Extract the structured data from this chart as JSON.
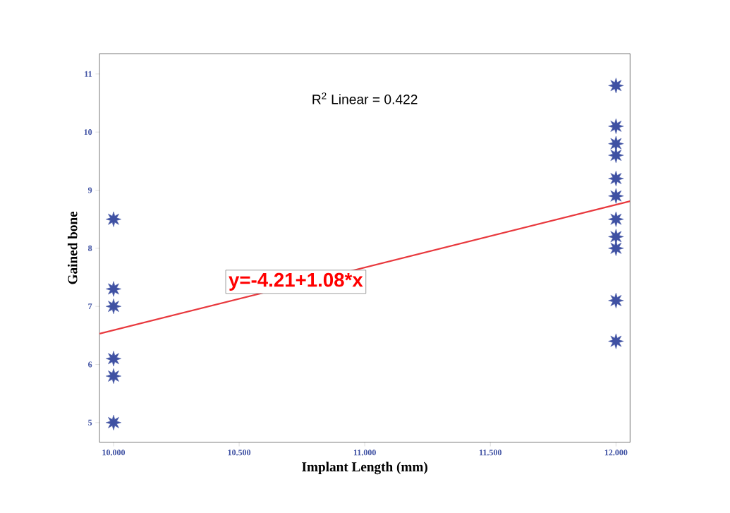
{
  "chart_data": {
    "type": "scatter",
    "xlabel": "Implant Length (mm)",
    "ylabel": "Gained bone",
    "series": [
      {
        "color": "#3f51a3",
        "marker": "star",
        "x": [
          10,
          10,
          10,
          10,
          10,
          10,
          12,
          12,
          12,
          12,
          12,
          12,
          12,
          12,
          12,
          12,
          12
        ],
        "values": [
          8.5,
          7.3,
          7.0,
          6.1,
          5.8,
          5.0,
          10.8,
          10.1,
          9.8,
          9.6,
          9.2,
          8.9,
          8.5,
          8.2,
          8.0,
          7.1,
          6.4
        ]
      },
      {
        "type": "line",
        "color": "#e8383d",
        "x": [
          9.944,
          12.056
        ],
        "values": [
          6.53,
          8.81
        ]
      }
    ],
    "xlim": [
      9.944,
      12.056
    ],
    "ylim": [
      4.66,
      11.35
    ],
    "xticks": [
      {
        "value": 10,
        "label": "10.000"
      },
      {
        "value": 10.5,
        "label": "10.500"
      },
      {
        "value": 11,
        "label": "11.000"
      },
      {
        "value": 11.5,
        "label": "11.500"
      },
      {
        "value": 12,
        "label": "12.000"
      }
    ],
    "yticks": [
      5,
      6,
      7,
      8,
      9,
      10,
      11
    ],
    "annotations": [
      "R$^{2}$ Linear = 0.422",
      "y=-4.21+1.08*x"
    ],
    "grid": false
  }
}
